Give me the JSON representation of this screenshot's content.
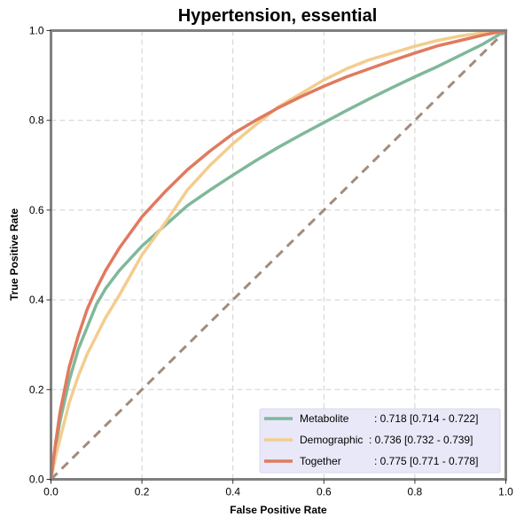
{
  "chart_data": {
    "type": "line",
    "title": "Hypertension, essential",
    "xlabel": "False Positive Rate",
    "ylabel": "True Positive Rate",
    "xlim": [
      0,
      1
    ],
    "ylim": [
      0,
      1
    ],
    "xticks": [
      "0.0",
      "0.2",
      "0.4",
      "0.6",
      "0.8",
      "1.0"
    ],
    "yticks": [
      "0.0",
      "0.2",
      "0.4",
      "0.6",
      "0.8",
      "1.0"
    ],
    "grid": true,
    "legend_position": "bottom-right",
    "series": [
      {
        "name": "Metabolite",
        "label_text": "Metabolite",
        "auc_text": ": 0.718 [0.714 - 0.722]",
        "color": "#7fb89a",
        "x": [
          0,
          0.01,
          0.02,
          0.04,
          0.06,
          0.08,
          0.1,
          0.12,
          0.15,
          0.2,
          0.25,
          0.3,
          0.35,
          0.4,
          0.45,
          0.5,
          0.55,
          0.6,
          0.65,
          0.7,
          0.75,
          0.8,
          0.85,
          0.9,
          0.95,
          1.0
        ],
        "y": [
          0,
          0.07,
          0.13,
          0.22,
          0.29,
          0.34,
          0.39,
          0.425,
          0.465,
          0.52,
          0.565,
          0.61,
          0.645,
          0.678,
          0.71,
          0.74,
          0.768,
          0.795,
          0.822,
          0.848,
          0.873,
          0.897,
          0.92,
          0.945,
          0.97,
          1.0
        ]
      },
      {
        "name": "Demographic",
        "label_text": "Demographic",
        "auc_text": ": 0.736 [0.732 - 0.739]",
        "color": "#f3cd8e",
        "x": [
          0,
          0.01,
          0.02,
          0.04,
          0.06,
          0.08,
          0.1,
          0.12,
          0.15,
          0.2,
          0.25,
          0.3,
          0.35,
          0.4,
          0.45,
          0.5,
          0.55,
          0.6,
          0.65,
          0.7,
          0.75,
          0.8,
          0.85,
          0.9,
          0.95,
          1.0
        ],
        "y": [
          0,
          0.05,
          0.09,
          0.17,
          0.23,
          0.28,
          0.32,
          0.36,
          0.41,
          0.5,
          0.57,
          0.645,
          0.7,
          0.748,
          0.79,
          0.83,
          0.86,
          0.89,
          0.915,
          0.935,
          0.95,
          0.965,
          0.978,
          0.988,
          0.995,
          1.0
        ]
      },
      {
        "name": "Together",
        "label_text": "Together",
        "auc_text": ": 0.775 [0.771 - 0.778]",
        "color": "#e07a5f",
        "x": [
          0,
          0.01,
          0.02,
          0.04,
          0.06,
          0.08,
          0.1,
          0.12,
          0.15,
          0.2,
          0.25,
          0.3,
          0.35,
          0.4,
          0.45,
          0.5,
          0.55,
          0.6,
          0.65,
          0.7,
          0.75,
          0.8,
          0.85,
          0.9,
          0.95,
          1.0
        ],
        "y": [
          0,
          0.08,
          0.15,
          0.25,
          0.32,
          0.38,
          0.425,
          0.465,
          0.515,
          0.585,
          0.64,
          0.69,
          0.732,
          0.77,
          0.8,
          0.828,
          0.853,
          0.876,
          0.897,
          0.915,
          0.933,
          0.95,
          0.966,
          0.978,
          0.99,
          1.0
        ]
      }
    ],
    "reference_line": {
      "color": "#a48b7b",
      "x": [
        0,
        1
      ],
      "y": [
        0,
        1
      ]
    }
  }
}
